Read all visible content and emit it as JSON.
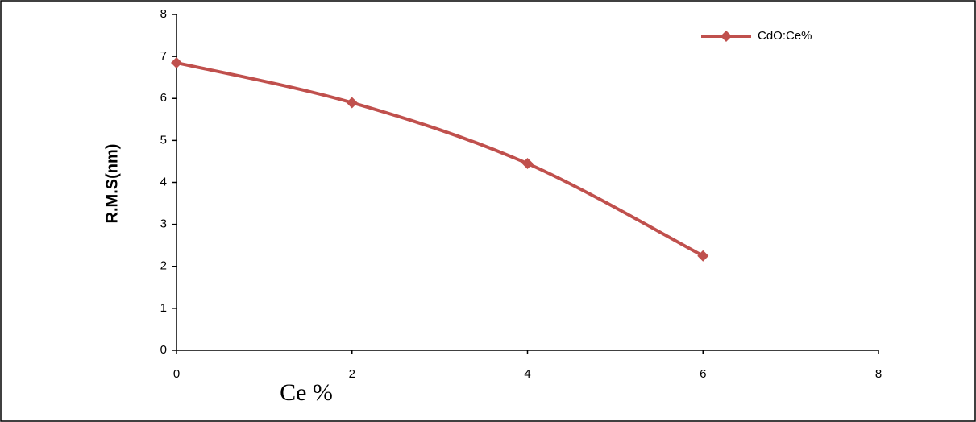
{
  "chart_data": {
    "type": "line",
    "x_label": "Ce %",
    "y_label": "R.M.S(nm)",
    "x": [
      0,
      2,
      4,
      6
    ],
    "series": [
      {
        "name": "CdO:Ce%",
        "color": "#c0504d",
        "values": [
          6.85,
          5.9,
          4.45,
          2.25
        ]
      }
    ],
    "xlim": [
      0,
      8
    ],
    "xticks": [
      0,
      2,
      4,
      6,
      8
    ],
    "ylim": [
      0,
      8
    ],
    "yticks": [
      0,
      1,
      2,
      3,
      4,
      5,
      6,
      7,
      8
    ],
    "grid": false,
    "smooth": true,
    "legend": "top-right"
  }
}
